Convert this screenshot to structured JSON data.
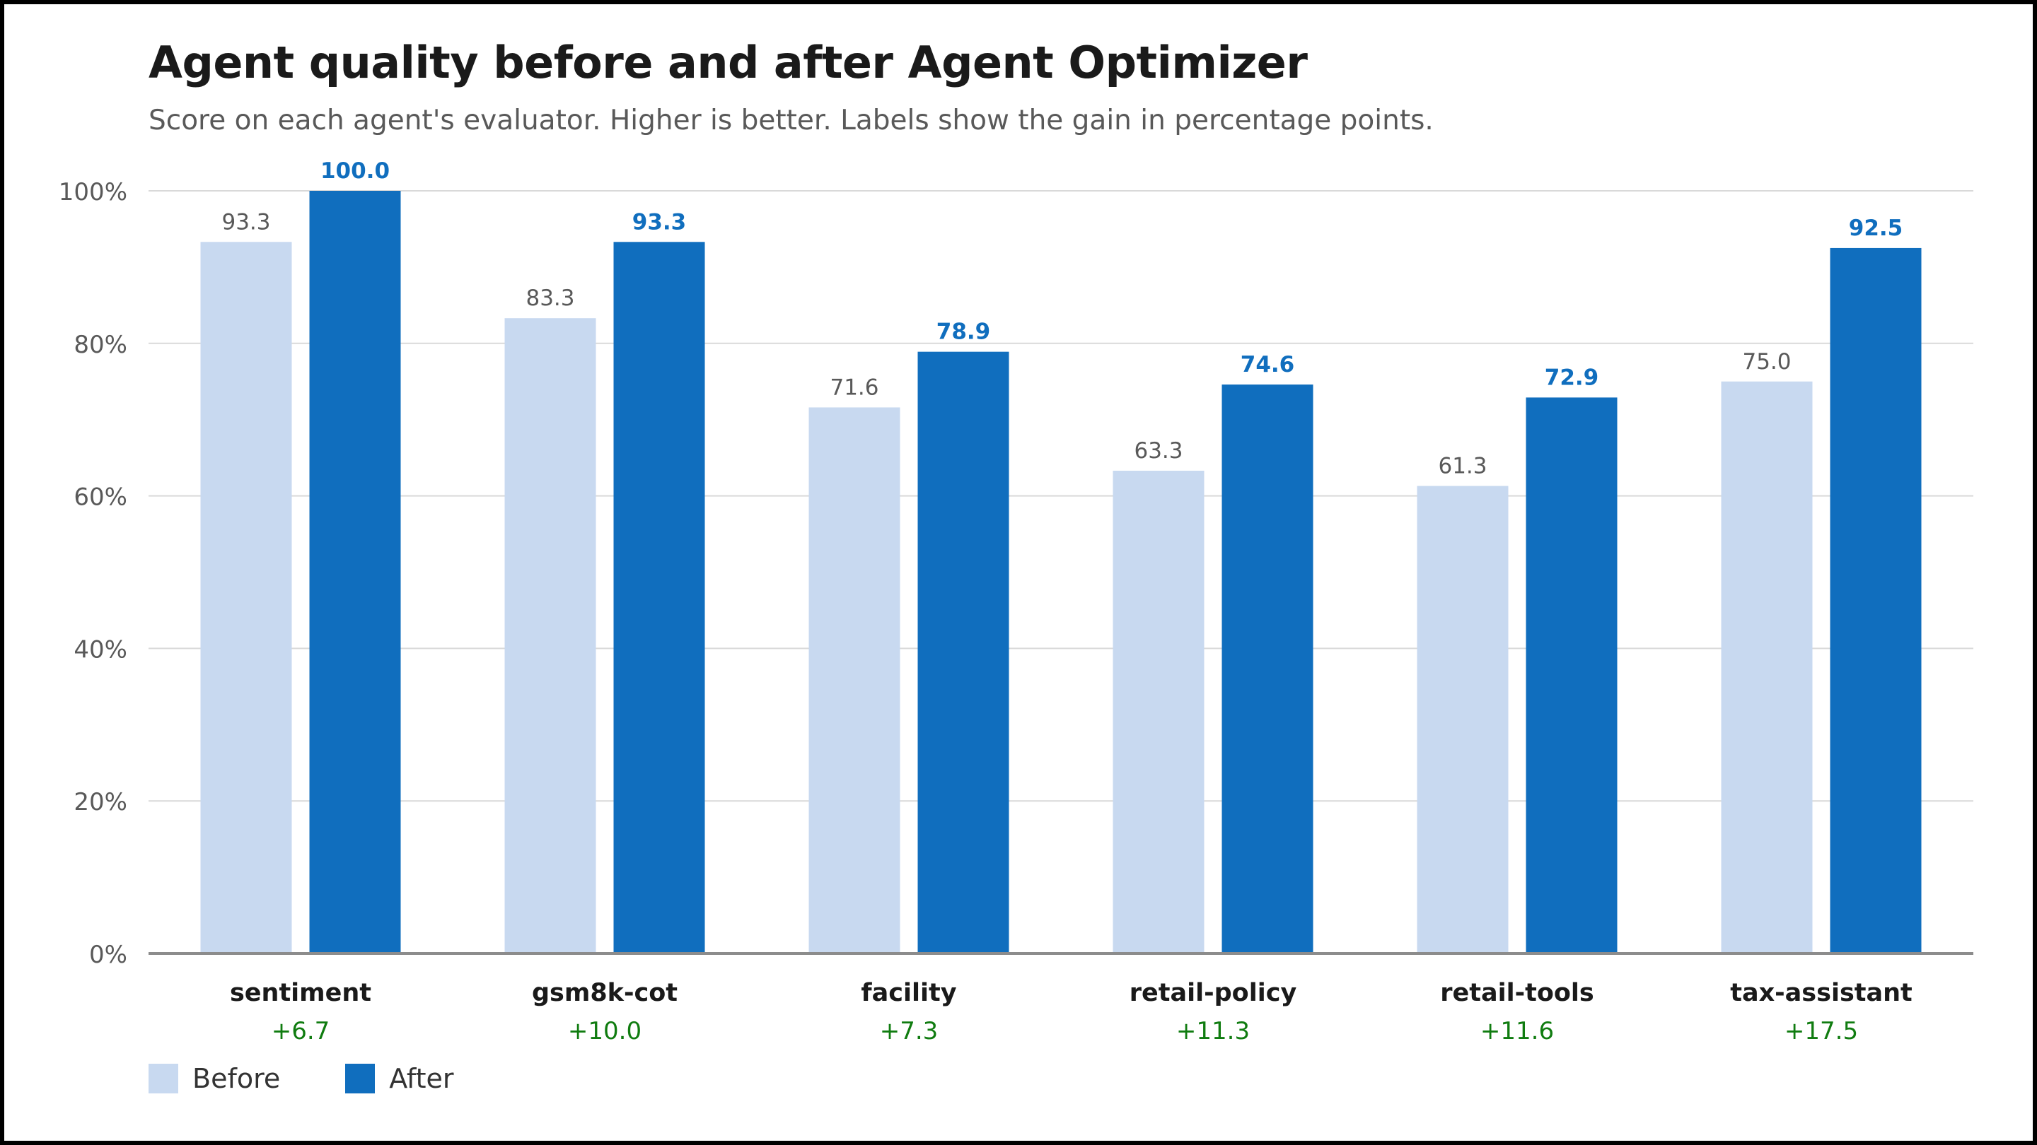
{
  "chart": {
    "title": "Agent quality before and after Agent Optimizer",
    "subtitle": "Score on each agent's evaluator. Higher is better. Labels show the gain in percentage points."
  },
  "legend": {
    "before_label": "Before",
    "after_label": "After"
  },
  "colors": {
    "before": "#c8d9f0",
    "after": "#106ebe",
    "gain": "#107c10",
    "grid": "#d9d9d9",
    "axis": "#8c8c8c"
  },
  "chart_data": {
    "type": "bar",
    "title": "Agent quality before and after Agent Optimizer",
    "subtitle": "Score on each agent's evaluator. Higher is better. Labels show the gain in percentage points.",
    "categories": [
      "sentiment",
      "gsm8k-cot",
      "facility",
      "retail-policy",
      "retail-tools",
      "tax-assistant"
    ],
    "series": [
      {
        "name": "Before",
        "values": [
          93.3,
          83.3,
          71.6,
          63.3,
          61.3,
          75.0
        ]
      },
      {
        "name": "After",
        "values": [
          100.0,
          93.3,
          78.9,
          74.6,
          72.9,
          92.5
        ]
      }
    ],
    "gains": [
      "+6.7",
      "+10.0",
      "+7.3",
      "+11.3",
      "+11.6",
      "+17.5"
    ],
    "value_labels": {
      "before": [
        "93.3",
        "83.3",
        "71.6",
        "63.3",
        "61.3",
        "75.0"
      ],
      "after": [
        "100.0",
        "93.3",
        "78.9",
        "74.6",
        "72.9",
        "92.5"
      ]
    },
    "y_ticks": [
      0,
      20,
      40,
      60,
      80,
      100
    ],
    "y_tick_labels": [
      "0%",
      "20%",
      "40%",
      "60%",
      "80%",
      "100%"
    ],
    "ylim": [
      0,
      100
    ],
    "xlabel": "",
    "ylabel": "",
    "grid": true,
    "legend_position": "bottom-left"
  }
}
